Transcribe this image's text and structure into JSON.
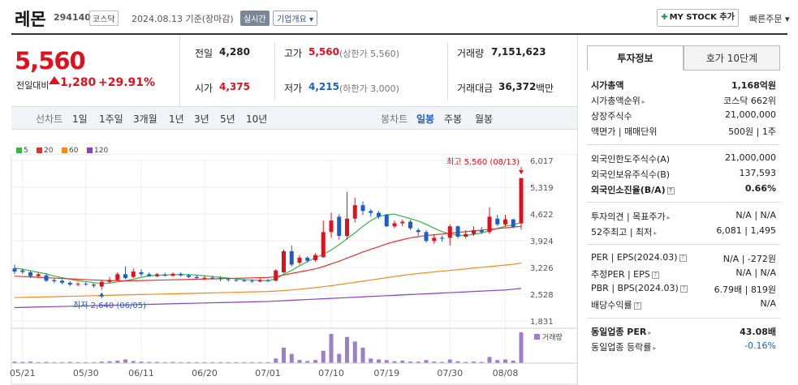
{
  "header": {
    "name": "레몬",
    "code": "294140",
    "market": "코스닥",
    "date": "2024.08.13 기준(장마감)",
    "realtime": "실시간",
    "corp_info": "기업개요 ▾",
    "mystock": "MY STOCK 추가",
    "quick_order": "빠른주문 ▾"
  },
  "price": {
    "current": "5,560",
    "change_label": "전일대비",
    "change": "1,280",
    "change_pct": "+29.91%",
    "colors": {
      "up": "#e0111c",
      "down": "#1b5ec8"
    }
  },
  "quotes": {
    "prev_label": "전일",
    "prev": "4,280",
    "open_label": "시가",
    "open": "4,375",
    "high_label": "고가",
    "high": "5,560",
    "high_limit": "(상한가 5,560)",
    "low_label": "저가",
    "low": "4,215",
    "low_limit": "(하한가 3,000)",
    "volume_label": "거래량",
    "volume": "7,151,623",
    "amount_label": "거래대금",
    "amount": "36,372",
    "amount_unit": "백만"
  },
  "period_bar": {
    "line_label": "선차트",
    "line_items": [
      "1일",
      "1주일",
      "3개월",
      "1년",
      "3년",
      "5년",
      "10년"
    ],
    "candle_label": "봉차트",
    "candle_items": [
      "일봉",
      "주봉",
      "월봉"
    ],
    "active": "일봉"
  },
  "legend": [
    {
      "label": "5",
      "color": "#3bb34a"
    },
    {
      "label": "20",
      "color": "#e8312f"
    },
    {
      "label": "60",
      "color": "#f08c1e"
    },
    {
      "label": "120",
      "color": "#8a3ec0"
    }
  ],
  "chart_data": {
    "type": "candlestick",
    "y_ticks": [
      "6,017",
      "5,319",
      "4,622",
      "3,924",
      "3,226",
      "2,528",
      "1,831"
    ],
    "ylim": [
      1831,
      6017
    ],
    "x_ticks": [
      "05/21",
      "05/30",
      "06/11",
      "06/20",
      "07/01",
      "07/10",
      "07/19",
      "07/30",
      "08/08"
    ],
    "max_annotation": "최고 5,560 (08/13)",
    "min_annotation": "최저 2,640 (06/05)",
    "volume_label": "거래량",
    "candles": [
      {
        "o": 3200,
        "c": 3120,
        "h": 3300,
        "l": 3050
      },
      {
        "o": 3150,
        "c": 3110,
        "h": 3200,
        "l": 3060
      },
      {
        "o": 3100,
        "c": 3000,
        "h": 3150,
        "l": 2950
      },
      {
        "o": 3000,
        "c": 3050,
        "h": 3100,
        "l": 2960
      },
      {
        "o": 3020,
        "c": 2880,
        "h": 3080,
        "l": 2850
      },
      {
        "o": 2900,
        "c": 2870,
        "h": 2950,
        "l": 2820
      },
      {
        "o": 2880,
        "c": 2830,
        "h": 2920,
        "l": 2790
      },
      {
        "o": 2830,
        "c": 2780,
        "h": 2870,
        "l": 2740
      },
      {
        "o": 2790,
        "c": 2800,
        "h": 2840,
        "l": 2740
      },
      {
        "o": 2800,
        "c": 2780,
        "h": 2850,
        "l": 2750
      },
      {
        "o": 2780,
        "c": 2750,
        "h": 2810,
        "l": 2700
      },
      {
        "o": 2730,
        "c": 2850,
        "h": 2900,
        "l": 2640
      },
      {
        "o": 2850,
        "c": 2900,
        "h": 2980,
        "l": 2820
      },
      {
        "o": 2900,
        "c": 3050,
        "h": 3100,
        "l": 2880
      },
      {
        "o": 3050,
        "c": 2950,
        "h": 3250,
        "l": 2920
      },
      {
        "o": 2980,
        "c": 3120,
        "h": 3200,
        "l": 2950
      },
      {
        "o": 3100,
        "c": 3050,
        "h": 3180,
        "l": 3000
      },
      {
        "o": 3050,
        "c": 3000,
        "h": 3100,
        "l": 2980
      },
      {
        "o": 3000,
        "c": 3050,
        "h": 3080,
        "l": 2970
      },
      {
        "o": 3040,
        "c": 3010,
        "h": 3090,
        "l": 2990
      },
      {
        "o": 3010,
        "c": 3060,
        "h": 3100,
        "l": 2990
      },
      {
        "o": 3060,
        "c": 3020,
        "h": 3100,
        "l": 2990
      },
      {
        "o": 3020,
        "c": 2980,
        "h": 3060,
        "l": 2950
      },
      {
        "o": 2980,
        "c": 2950,
        "h": 3030,
        "l": 2920
      },
      {
        "o": 2950,
        "c": 2960,
        "h": 3010,
        "l": 2900
      },
      {
        "o": 2960,
        "c": 2950,
        "h": 3010,
        "l": 2910
      },
      {
        "o": 2950,
        "c": 2920,
        "h": 3000,
        "l": 2870
      },
      {
        "o": 2920,
        "c": 2900,
        "h": 2960,
        "l": 2860
      },
      {
        "o": 2900,
        "c": 2890,
        "h": 2950,
        "l": 2860
      },
      {
        "o": 2890,
        "c": 2880,
        "h": 2930,
        "l": 2850
      },
      {
        "o": 2880,
        "c": 2860,
        "h": 2920,
        "l": 2830
      },
      {
        "o": 2860,
        "c": 2890,
        "h": 2950,
        "l": 2840
      },
      {
        "o": 2890,
        "c": 2880,
        "h": 2930,
        "l": 2850
      },
      {
        "o": 2880,
        "c": 3150,
        "h": 3180,
        "l": 2870
      },
      {
        "o": 3100,
        "c": 3650,
        "h": 3700,
        "l": 3080
      },
      {
        "o": 3650,
        "c": 3300,
        "h": 3800,
        "l": 3250
      },
      {
        "o": 3350,
        "c": 3480,
        "h": 3550,
        "l": 3300
      },
      {
        "o": 3480,
        "c": 3400,
        "h": 3520,
        "l": 3350
      },
      {
        "o": 3420,
        "c": 3550,
        "h": 3600,
        "l": 3380
      },
      {
        "o": 3500,
        "c": 4150,
        "h": 4450,
        "l": 3480
      },
      {
        "o": 4150,
        "c": 4450,
        "h": 4650,
        "l": 4000
      },
      {
        "o": 4550,
        "c": 4050,
        "h": 4620,
        "l": 3950
      },
      {
        "o": 4050,
        "c": 4500,
        "h": 5200,
        "l": 3950
      },
      {
        "o": 4500,
        "c": 4850,
        "h": 5050,
        "l": 4400
      },
      {
        "o": 4850,
        "c": 4700,
        "h": 4950,
        "l": 4600
      },
      {
        "o": 4700,
        "c": 4650,
        "h": 4750,
        "l": 4550
      },
      {
        "o": 4650,
        "c": 4550,
        "h": 4700,
        "l": 4500
      },
      {
        "o": 4600,
        "c": 4300,
        "h": 4620,
        "l": 4280
      },
      {
        "o": 4300,
        "c": 4380,
        "h": 4450,
        "l": 4250
      },
      {
        "o": 4380,
        "c": 4420,
        "h": 4480,
        "l": 4300
      },
      {
        "o": 4420,
        "c": 4250,
        "h": 4470,
        "l": 4200
      },
      {
        "o": 4200,
        "c": 4150,
        "h": 4250,
        "l": 4050
      },
      {
        "o": 4150,
        "c": 3920,
        "h": 4200,
        "l": 3880
      },
      {
        "o": 3920,
        "c": 4000,
        "h": 4100,
        "l": 3850
      },
      {
        "o": 4000,
        "c": 3980,
        "h": 4060,
        "l": 3900
      },
      {
        "o": 4000,
        "c": 4300,
        "h": 4350,
        "l": 3800
      },
      {
        "o": 4300,
        "c": 4030,
        "h": 4320,
        "l": 3980
      },
      {
        "o": 4030,
        "c": 4100,
        "h": 4200,
        "l": 3980
      },
      {
        "o": 4100,
        "c": 4200,
        "h": 4300,
        "l": 4050
      },
      {
        "o": 4200,
        "c": 4150,
        "h": 4280,
        "l": 4100
      },
      {
        "o": 4150,
        "c": 4550,
        "h": 4800,
        "l": 4100
      },
      {
        "o": 4500,
        "c": 4350,
        "h": 4600,
        "l": 4300
      },
      {
        "o": 4350,
        "c": 4480,
        "h": 4600,
        "l": 4300
      },
      {
        "o": 4480,
        "c": 4280,
        "h": 4500,
        "l": 4250
      },
      {
        "o": 4375,
        "c": 5560,
        "h": 5560,
        "l": 4215
      }
    ],
    "ma": [
      {
        "name": "5",
        "color": "#3bb34a",
        "values": [
          3210,
          3180,
          3140,
          3100,
          3060,
          3000,
          2960,
          2920,
          2880,
          2860,
          2830,
          2810,
          2820,
          2850,
          2880,
          2920,
          2970,
          3010,
          3020,
          3030,
          3040,
          3040,
          3040,
          3030,
          3010,
          2990,
          2970,
          2950,
          2930,
          2910,
          2900,
          2890,
          2880,
          2930,
          3050,
          3150,
          3270,
          3380,
          3480,
          3570,
          3680,
          3820,
          3980,
          4130,
          4300,
          4450,
          4560,
          4600,
          4620,
          4560,
          4500,
          4440,
          4350,
          4250,
          4160,
          4100,
          4070,
          4060,
          4090,
          4130,
          4180,
          4250,
          4300,
          4340,
          4400
        ]
      },
      {
        "name": "20",
        "color": "#e8312f",
        "values": [
          3000,
          2990,
          2980,
          2970,
          2960,
          2950,
          2940,
          2930,
          2920,
          2910,
          2900,
          2890,
          2885,
          2880,
          2880,
          2880,
          2885,
          2890,
          2895,
          2900,
          2905,
          2910,
          2915,
          2920,
          2925,
          2930,
          2935,
          2940,
          2945,
          2950,
          2955,
          2960,
          2965,
          2990,
          3030,
          3070,
          3110,
          3150,
          3190,
          3250,
          3320,
          3390,
          3470,
          3550,
          3630,
          3700,
          3770,
          3840,
          3900,
          3950,
          4000,
          4030,
          4060,
          4080,
          4100,
          4120,
          4140,
          4160,
          4180,
          4200,
          4220,
          4240,
          4260,
          4280,
          4300
        ]
      },
      {
        "name": "60",
        "color": "#f08c1e",
        "values": [
          2440,
          2445,
          2450,
          2455,
          2460,
          2465,
          2470,
          2475,
          2480,
          2485,
          2490,
          2495,
          2500,
          2505,
          2510,
          2515,
          2520,
          2525,
          2530,
          2535,
          2540,
          2545,
          2550,
          2555,
          2560,
          2565,
          2570,
          2575,
          2580,
          2585,
          2590,
          2595,
          2600,
          2610,
          2625,
          2640,
          2660,
          2680,
          2700,
          2725,
          2750,
          2780,
          2810,
          2840,
          2870,
          2900,
          2930,
          2960,
          2990,
          3020,
          3045,
          3070,
          3090,
          3110,
          3130,
          3150,
          3170,
          3190,
          3210,
          3230,
          3250,
          3270,
          3290,
          3310,
          3340
        ]
      },
      {
        "name": "120",
        "color": "#8a3ec0",
        "values": [
          2180,
          2185,
          2190,
          2195,
          2200,
          2205,
          2210,
          2215,
          2220,
          2225,
          2230,
          2235,
          2240,
          2245,
          2250,
          2255,
          2260,
          2265,
          2270,
          2275,
          2280,
          2285,
          2290,
          2295,
          2300,
          2305,
          2310,
          2315,
          2320,
          2325,
          2330,
          2335,
          2340,
          2350,
          2360,
          2370,
          2380,
          2390,
          2400,
          2410,
          2420,
          2430,
          2440,
          2450,
          2460,
          2470,
          2480,
          2490,
          2500,
          2510,
          2520,
          2530,
          2540,
          2550,
          2560,
          2570,
          2580,
          2590,
          2600,
          2610,
          2620,
          2630,
          2640,
          2660,
          2680
        ]
      }
    ],
    "volume_rel": [
      0.05,
      0.04,
      0.05,
      0.03,
      0.04,
      0.03,
      0.03,
      0.04,
      0.03,
      0.03,
      0.03,
      0.05,
      0.06,
      0.08,
      0.12,
      0.07,
      0.05,
      0.04,
      0.04,
      0.03,
      0.04,
      0.03,
      0.03,
      0.03,
      0.03,
      0.03,
      0.03,
      0.03,
      0.03,
      0.03,
      0.03,
      0.03,
      0.03,
      0.15,
      0.5,
      0.3,
      0.1,
      0.07,
      0.1,
      0.4,
      0.95,
      0.3,
      0.85,
      0.7,
      0.5,
      0.15,
      0.12,
      0.1,
      0.06,
      0.08,
      0.05,
      0.05,
      0.1,
      0.05,
      0.04,
      0.12,
      0.06,
      0.04,
      0.05,
      0.04,
      0.2,
      0.1,
      0.12,
      0.08,
      1.0
    ]
  },
  "invest_panel": {
    "tab_active": "투자정보",
    "tab_other": "호가 10단계",
    "rows": [
      {
        "k": "시가총액",
        "v": "1,168억원",
        "bold": true
      },
      {
        "k": "시가총액순위",
        "v": "코스닥 662위",
        "arrow": true
      },
      {
        "k": "상장주식수",
        "v": "21,000,000"
      },
      {
        "k": "액면가 | 매매단위",
        "v": "500원 | 1주"
      },
      {
        "k": "외국인한도주식수(A)",
        "v": "21,000,000"
      },
      {
        "k": "외국인보유주식수(B)",
        "v": "137,593"
      },
      {
        "k": "외국인소진율(B/A)",
        "v": "0.66%",
        "bold": true,
        "q": true
      },
      {
        "k": "투자의견 | 목표주가",
        "v": "N/A | N/A",
        "arrow": true
      },
      {
        "k": "52주최고 | 최저",
        "v": "6,081 | 1,495",
        "arrow": true
      },
      {
        "k": "PER | EPS(2024.03)",
        "v": "N/A | -272원",
        "q": true
      },
      {
        "k": "추정PER | EPS",
        "v": "N/A | N/A",
        "q": true
      },
      {
        "k": "PBR | BPS(2024.03)",
        "v": "6.79배 | 819원",
        "q": true
      },
      {
        "k": "배당수익률",
        "v": "N/A",
        "q": true
      },
      {
        "k": "동일업종 PER",
        "v": "43.08배",
        "bold": true,
        "arrow": true
      },
      {
        "k": "동일업종 등락률",
        "v": "-0.16%",
        "arrow": true,
        "blue": true
      }
    ]
  }
}
